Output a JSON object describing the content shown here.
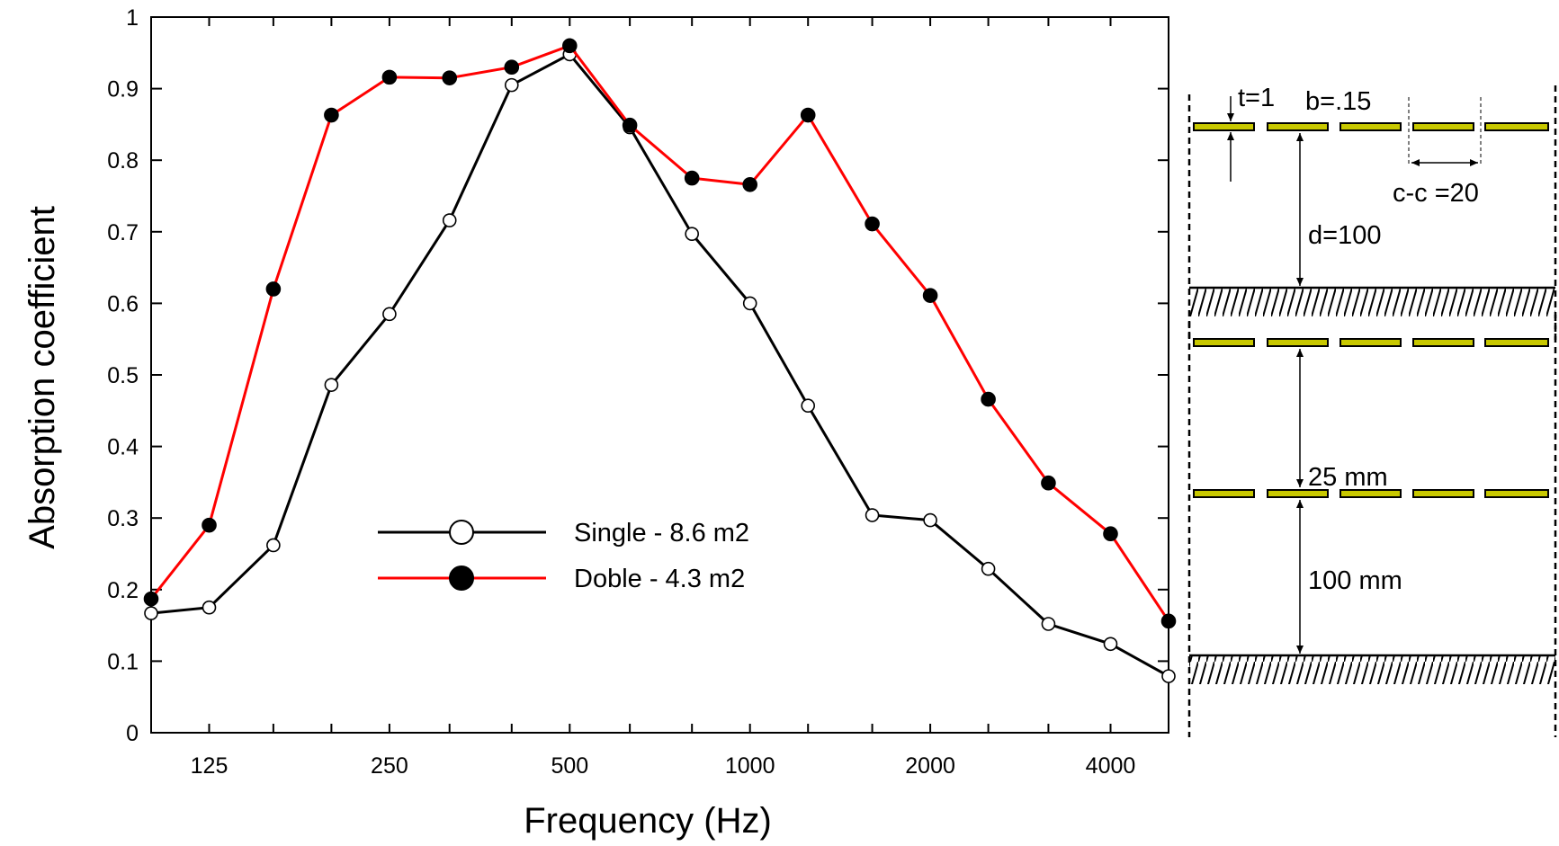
{
  "chart_data": {
    "type": "line",
    "title": "",
    "xlabel": "Frequency (Hz)",
    "ylabel": "Absorption coefficient",
    "x_scale": "log",
    "xlim": [
      100,
      5000
    ],
    "ylim": [
      0,
      1
    ],
    "x_ticks": [
      {
        "value": 125,
        "label": "125"
      },
      {
        "value": 250,
        "label": "250"
      },
      {
        "value": 500,
        "label": "500"
      },
      {
        "value": 1000,
        "label": "1000"
      },
      {
        "value": 2000,
        "label": "2000"
      },
      {
        "value": 4000,
        "label": "4000"
      }
    ],
    "y_ticks": [
      {
        "value": 0,
        "label": "0"
      },
      {
        "value": 0.1,
        "label": "0.1"
      },
      {
        "value": 0.2,
        "label": "0.2"
      },
      {
        "value": 0.3,
        "label": "0.3"
      },
      {
        "value": 0.4,
        "label": "0.4"
      },
      {
        "value": 0.5,
        "label": "0.5"
      },
      {
        "value": 0.6,
        "label": "0.6"
      },
      {
        "value": 0.7,
        "label": "0.7"
      },
      {
        "value": 0.8,
        "label": "0.8"
      },
      {
        "value": 0.9,
        "label": "0.9"
      },
      {
        "value": 1,
        "label": "1"
      }
    ],
    "x": [
      100,
      125,
      160,
      200,
      250,
      315,
      400,
      500,
      630,
      800,
      1000,
      1250,
      1600,
      2000,
      2500,
      3150,
      4000,
      5000
    ],
    "series": [
      {
        "name": "Single - 8.6 m2",
        "color": "#000000",
        "marker": "open-circle",
        "values": [
          0.167,
          0.175,
          0.262,
          0.486,
          0.585,
          0.716,
          0.905,
          0.948,
          0.846,
          0.697,
          0.6,
          0.457,
          0.304,
          0.297,
          0.229,
          0.152,
          0.124,
          0.079
        ]
      },
      {
        "name": "Doble - 4.3 m2",
        "color": "#ff0000",
        "marker": "filled-circle",
        "values": [
          0.187,
          0.29,
          0.62,
          0.863,
          0.916,
          0.915,
          0.93,
          0.96,
          0.849,
          0.775,
          0.766,
          0.863,
          0.711,
          0.611,
          0.466,
          0.349,
          0.278,
          0.156
        ]
      }
    ],
    "legend": {
      "placement": "lower-center"
    },
    "grid": false
  },
  "diagram": {
    "top": {
      "t_label": "t=1",
      "b_label": "b=.15",
      "cc_label": "c-c =20",
      "d_label": "d=100"
    },
    "bottom": {
      "gap_label": "25 mm",
      "depth_label": "100 mm"
    },
    "panel_color": "#c8c800"
  }
}
